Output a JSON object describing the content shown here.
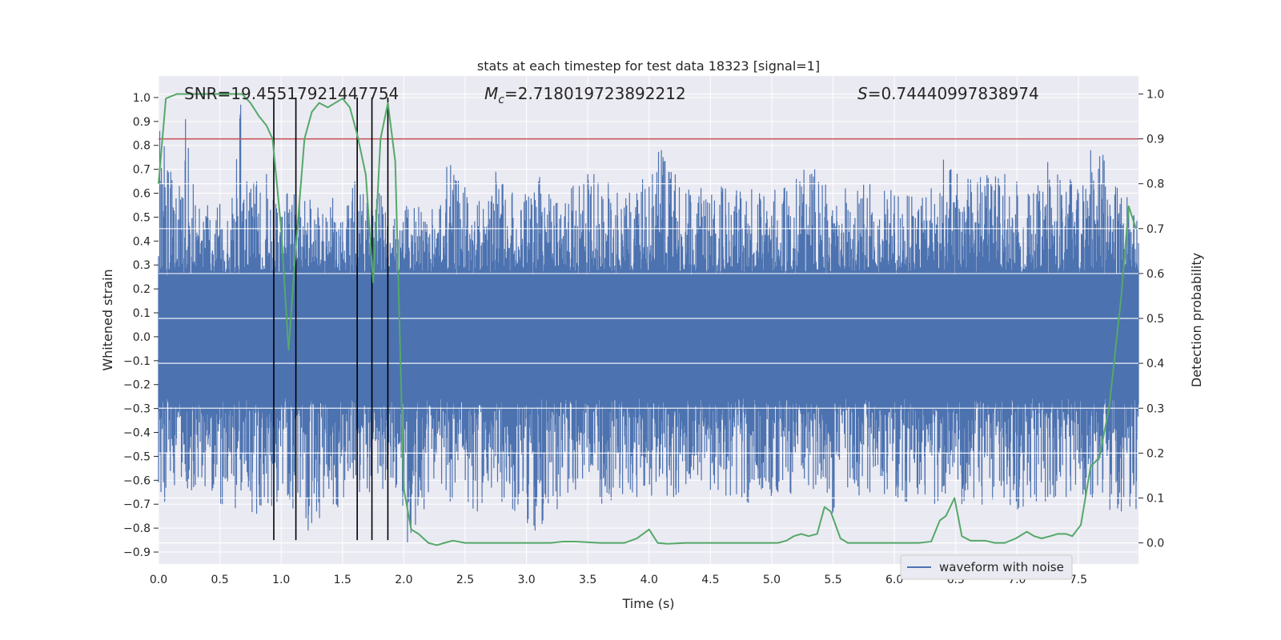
{
  "chart_data": {
    "type": "line",
    "title": "stats at each timestep for test data 18323 [signal=1]",
    "xlabel": "Time (s)",
    "ylabel": "Whitened strain",
    "y2label": "Detection probability",
    "xlim": [
      0.0,
      7.99
    ],
    "ylim": [
      -0.95,
      1.09
    ],
    "y2lim": [
      -0.047,
      1.04
    ],
    "xticks": [
      "0.0",
      "0.5",
      "1.0",
      "1.5",
      "2.0",
      "2.5",
      "3.0",
      "3.5",
      "4.0",
      "4.5",
      "5.0",
      "5.5",
      "6.0",
      "6.5",
      "7.0",
      "7.5"
    ],
    "yticks": [
      "-0.9",
      "-0.8",
      "-0.7",
      "-0.6",
      "-0.5",
      "-0.4",
      "-0.3",
      "-0.2",
      "-0.1",
      "0.0",
      "0.1",
      "0.2",
      "0.3",
      "0.4",
      "0.5",
      "0.6",
      "0.7",
      "0.8",
      "0.9",
      "1.0"
    ],
    "y2ticks": [
      "0.0",
      "0.1",
      "0.2",
      "0.3",
      "0.4",
      "0.5",
      "0.6",
      "0.7",
      "0.8",
      "0.9",
      "1.0"
    ],
    "grid": true,
    "legend": {
      "position": "lower-right",
      "entries": [
        "waveform with noise"
      ]
    },
    "annotations": {
      "snr": "SNR=19.45517921447754",
      "mc_symbol": "M",
      "mc_sub": "c",
      "mc_value": "=2.718019723892212",
      "s_symbol": "S",
      "s_value": "=0.74440997838974"
    },
    "threshold": 0.9,
    "vlines": [
      0.94,
      1.12,
      1.62,
      1.74,
      1.87
    ],
    "vline_range": [
      -0.85,
      1.0
    ],
    "waveform": {
      "name": "waveform with noise",
      "color": "#4c72b0",
      "envelope_peaks_pos": [
        [
          0.01,
          0.86
        ],
        [
          0.1,
          0.69
        ],
        [
          0.2,
          0.58
        ],
        [
          0.22,
          0.91
        ],
        [
          0.3,
          0.55
        ],
        [
          0.4,
          0.55
        ],
        [
          0.5,
          0.55
        ],
        [
          0.6,
          0.58
        ],
        [
          0.67,
          0.97
        ],
        [
          0.72,
          0.65
        ],
        [
          0.8,
          0.65
        ],
        [
          0.88,
          0.68
        ],
        [
          1.0,
          0.5
        ],
        [
          1.05,
          0.6
        ],
        [
          1.15,
          0.57
        ],
        [
          1.3,
          0.54
        ],
        [
          1.42,
          0.58
        ],
        [
          1.5,
          0.48
        ],
        [
          1.6,
          0.65
        ],
        [
          1.7,
          0.56
        ],
        [
          1.8,
          0.6
        ],
        [
          1.85,
          0.52
        ],
        [
          2.3,
          0.55
        ],
        [
          2.35,
          0.71
        ],
        [
          2.6,
          0.55
        ],
        [
          2.75,
          0.69
        ],
        [
          3.0,
          0.57
        ],
        [
          3.1,
          0.65
        ],
        [
          3.25,
          0.56
        ],
        [
          3.5,
          0.68
        ],
        [
          3.55,
          0.68
        ],
        [
          3.9,
          0.6
        ],
        [
          4.1,
          0.78
        ],
        [
          4.3,
          0.6
        ],
        [
          4.6,
          0.62
        ],
        [
          4.9,
          0.6
        ],
        [
          5.1,
          0.62
        ],
        [
          5.2,
          0.66
        ],
        [
          5.35,
          0.7
        ],
        [
          5.6,
          0.62
        ],
        [
          5.7,
          0.61
        ],
        [
          5.8,
          0.64
        ],
        [
          6.0,
          0.59
        ],
        [
          6.3,
          0.62
        ],
        [
          6.4,
          0.74
        ],
        [
          6.6,
          0.66
        ],
        [
          6.9,
          0.68
        ],
        [
          7.1,
          0.59
        ],
        [
          7.25,
          0.73
        ],
        [
          7.5,
          0.6
        ],
        [
          7.6,
          0.78
        ],
        [
          7.7,
          0.76
        ],
        [
          7.85,
          0.58
        ]
      ],
      "envelope_peaks_neg": [
        [
          0.05,
          -0.69
        ],
        [
          0.13,
          -0.62
        ],
        [
          0.3,
          -0.62
        ],
        [
          0.52,
          -0.7
        ],
        [
          0.8,
          -0.74
        ],
        [
          1.07,
          -0.68
        ],
        [
          1.22,
          -0.81
        ],
        [
          1.45,
          -0.7
        ],
        [
          1.72,
          -0.65
        ],
        [
          1.85,
          -0.6
        ],
        [
          2.03,
          -0.86
        ],
        [
          2.2,
          -0.65
        ],
        [
          2.6,
          -0.73
        ],
        [
          2.8,
          -0.69
        ],
        [
          3.07,
          -0.81
        ],
        [
          3.4,
          -0.64
        ],
        [
          3.6,
          -0.67
        ],
        [
          3.9,
          -0.67
        ],
        [
          4.2,
          -0.67
        ],
        [
          4.5,
          -0.64
        ],
        [
          4.8,
          -0.69
        ],
        [
          5.05,
          -0.65
        ],
        [
          5.15,
          -0.65
        ],
        [
          5.3,
          -0.62
        ],
        [
          5.5,
          -0.73
        ],
        [
          5.8,
          -0.65
        ],
        [
          6.1,
          -0.69
        ],
        [
          6.25,
          -0.66
        ],
        [
          6.55,
          -0.7
        ],
        [
          6.8,
          -0.68
        ],
        [
          7.05,
          -0.71
        ],
        [
          7.25,
          -0.67
        ],
        [
          7.4,
          -0.67
        ],
        [
          7.6,
          -0.66
        ],
        [
          7.85,
          -0.73
        ],
        [
          7.97,
          -0.72
        ]
      ]
    },
    "probability": {
      "color": "#55a868",
      "x": [
        0.0,
        0.06,
        0.15,
        0.3,
        0.5,
        0.68,
        0.75,
        0.82,
        0.88,
        0.93,
        1.0,
        1.06,
        1.12,
        1.19,
        1.25,
        1.31,
        1.38,
        1.44,
        1.5,
        1.56,
        1.62,
        1.69,
        1.75,
        1.81,
        1.87,
        1.93,
        2.0,
        2.06,
        2.12,
        2.2,
        2.27,
        2.33,
        2.4,
        2.5,
        2.6,
        2.8,
        3.0,
        3.2,
        3.3,
        3.4,
        3.6,
        3.8,
        3.9,
        4.0,
        4.07,
        4.15,
        4.3,
        4.5,
        4.7,
        4.9,
        5.05,
        5.12,
        5.18,
        5.24,
        5.3,
        5.37,
        5.43,
        5.48,
        5.56,
        5.62,
        5.8,
        6.0,
        6.2,
        6.3,
        6.37,
        6.42,
        6.49,
        6.55,
        6.62,
        6.74,
        6.82,
        6.9,
        6.99,
        7.08,
        7.14,
        7.2,
        7.27,
        7.33,
        7.4,
        7.45,
        7.52,
        7.6,
        7.67,
        7.75,
        7.85,
        7.91,
        7.97
      ],
      "y": [
        0.8,
        0.99,
        1.0,
        1.0,
        1.0,
        1.0,
        0.98,
        0.95,
        0.93,
        0.9,
        0.7,
        0.43,
        0.66,
        0.9,
        0.96,
        0.98,
        0.97,
        0.98,
        0.99,
        0.97,
        0.91,
        0.82,
        0.58,
        0.9,
        0.98,
        0.85,
        0.12,
        0.03,
        0.02,
        0.0,
        -0.005,
        0.0,
        0.005,
        0.0,
        0.0,
        0.0,
        0.0,
        0.0,
        0.003,
        0.003,
        0.0,
        0.0,
        0.01,
        0.03,
        0.0,
        -0.002,
        0.0,
        0.0,
        0.0,
        0.0,
        0.0,
        0.005,
        0.015,
        0.02,
        0.015,
        0.02,
        0.08,
        0.07,
        0.01,
        0.0,
        0.0,
        0.0,
        0.0,
        0.003,
        0.05,
        0.06,
        0.1,
        0.015,
        0.005,
        0.005,
        0.0,
        0.0,
        0.01,
        0.025,
        0.015,
        0.01,
        0.015,
        0.02,
        0.02,
        0.015,
        0.04,
        0.17,
        0.19,
        0.3,
        0.55,
        0.75,
        0.7
      ]
    },
    "colors": {
      "background": "#eaeaf2",
      "grid": "#ffffff",
      "vline": "#000000",
      "threshold": "#c44e52"
    }
  }
}
